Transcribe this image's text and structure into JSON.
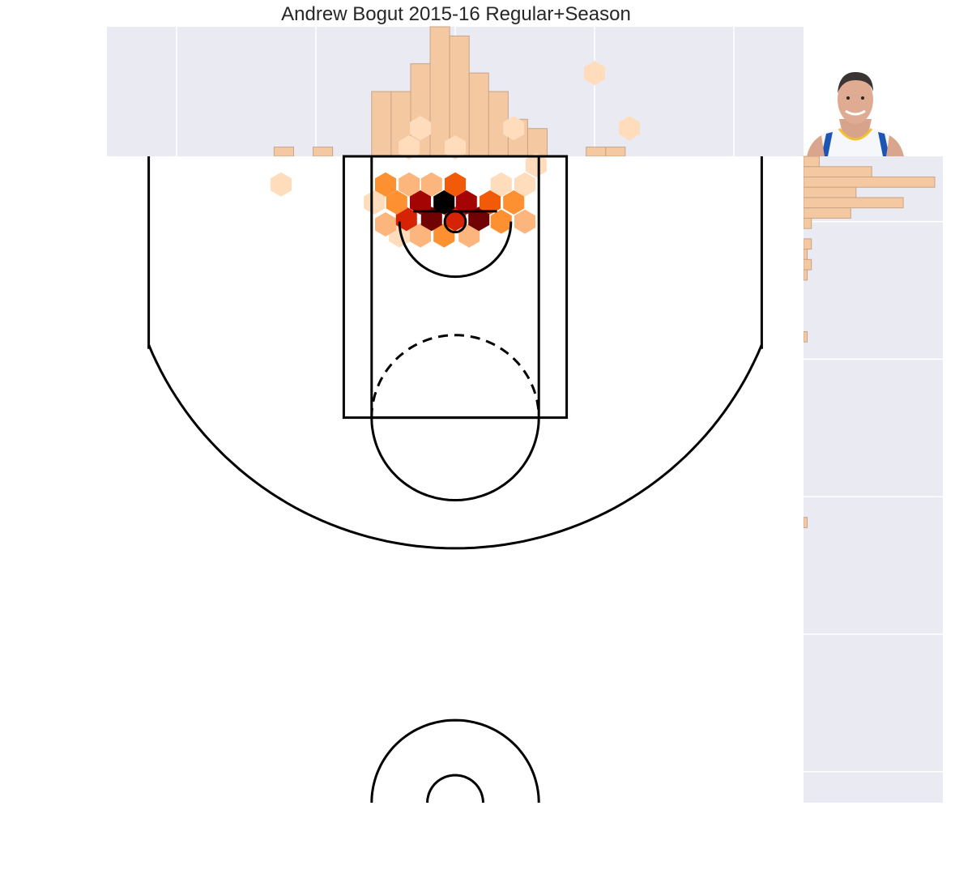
{
  "chart_data": {
    "type": "hexbin",
    "title": "Andrew Bogut 2015-16 Regular+Season",
    "xlim": [
      -250,
      250
    ],
    "ylim": [
      -47.5,
      422.5
    ],
    "court": {
      "three_point_line": true,
      "restricted_area": true,
      "paint": true,
      "center_circle": true
    },
    "colors": {
      "panel_bg": "#eaeaf2",
      "grid": "#ffffff",
      "hist_fill": "#f4c9a2",
      "hist_edge": "#c9a487",
      "court_line": "#000000",
      "hex_scale": [
        "#fedcbc",
        "#fdb57e",
        "#fd9031",
        "#f35a07",
        "#d62305",
        "#a40404",
        "#700202",
        "#000000"
      ]
    },
    "hexbins": [
      {
        "x": -40,
        "y": 10,
        "level": 1
      },
      {
        "x": -25,
        "y": 10,
        "level": 2
      },
      {
        "x": -8,
        "y": 10,
        "level": 3
      },
      {
        "x": 10,
        "y": 10,
        "level": 2
      },
      {
        "x": -50,
        "y": 2,
        "level": 2
      },
      {
        "x": -35,
        "y": -2,
        "level": 5
      },
      {
        "x": -17,
        "y": -2,
        "level": 7
      },
      {
        "x": 0,
        "y": -2,
        "level": 5
      },
      {
        "x": 17,
        "y": -2,
        "level": 7
      },
      {
        "x": 33,
        "y": 0,
        "level": 3
      },
      {
        "x": 50,
        "y": 0,
        "level": 2
      },
      {
        "x": -58,
        "y": -14,
        "level": 1
      },
      {
        "x": -42,
        "y": -14,
        "level": 3
      },
      {
        "x": -25,
        "y": -14,
        "level": 6
      },
      {
        "x": -8,
        "y": -14,
        "level": 8
      },
      {
        "x": 8,
        "y": -14,
        "level": 6
      },
      {
        "x": 25,
        "y": -14,
        "level": 4
      },
      {
        "x": 42,
        "y": -14,
        "level": 3
      },
      {
        "x": -50,
        "y": -27,
        "level": 3
      },
      {
        "x": -33,
        "y": -27,
        "level": 2
      },
      {
        "x": -17,
        "y": -27,
        "level": 2
      },
      {
        "x": 0,
        "y": -27,
        "level": 4
      },
      {
        "x": 33,
        "y": -27,
        "level": 1
      },
      {
        "x": 50,
        "y": -27,
        "level": 1
      },
      {
        "x": 58,
        "y": -41,
        "level": 1
      },
      {
        "x": -33,
        "y": -54,
        "level": 1
      },
      {
        "x": 0,
        "y": -54,
        "level": 1
      },
      {
        "x": -25,
        "y": -68,
        "level": 1
      },
      {
        "x": 42,
        "y": -68,
        "level": 1
      },
      {
        "x": 125,
        "y": -68,
        "level": 1
      },
      {
        "x": -125,
        "y": -27,
        "level": 1
      },
      {
        "x": 100,
        "y": -108,
        "level": 1
      },
      {
        "x": -92,
        "y": -203,
        "level": 1
      }
    ],
    "x_hist": {
      "bin_edges": [
        -130,
        -116,
        -102,
        -88,
        -74,
        -60,
        -46,
        -32,
        -18,
        -4,
        10,
        24,
        38,
        52,
        66,
        80,
        94,
        108,
        122
      ],
      "counts": [
        1,
        0,
        1,
        0,
        0,
        7,
        7,
        10,
        14,
        13,
        9,
        7,
        4,
        3,
        0,
        0,
        1,
        1
      ]
    },
    "y_hist": {
      "bin_edges": [
        -47.5,
        -40,
        -32.5,
        -25,
        -17.5,
        -10,
        -2.5,
        5,
        12.5,
        20,
        27.5,
        35,
        42.5,
        50,
        57.5,
        65,
        72.5,
        80,
        87.5,
        95,
        102.5,
        110,
        117.5,
        125,
        132.5,
        140,
        147.5,
        155,
        162.5,
        170,
        177.5,
        185,
        192.5,
        200,
        207.5,
        215,
        222.5,
        230,
        237.5,
        245,
        252.5,
        260,
        267.5,
        275,
        282.5,
        290,
        297.5,
        305,
        312.5,
        320,
        327.5,
        335,
        342.5,
        350,
        357.5,
        365,
        372.5,
        380,
        387.5,
        395,
        402.5,
        410,
        417.5,
        425
      ],
      "counts": [
        0,
        0,
        0,
        0,
        0,
        0,
        0,
        0,
        0,
        0,
        0,
        0,
        0,
        0,
        0,
        0,
        0,
        0,
        0,
        0,
        0,
        0,
        0,
        0,
        0,
        0,
        0,
        0,
        0,
        0,
        0,
        0,
        0,
        0,
        0,
        0,
        0,
        0,
        0,
        0,
        0,
        0,
        0,
        0,
        0,
        0,
        0,
        0,
        0,
        0,
        0,
        0,
        0,
        0,
        0,
        0,
        0,
        0,
        0,
        0,
        0,
        0,
        0
      ]
    },
    "y_hist_visible": {
      "bins": [
        {
          "y0": -47.5,
          "y1": -40.0,
          "count": 3
        },
        {
          "y0": -40.0,
          "y1": -32.5,
          "count": 13
        },
        {
          "y0": -32.5,
          "y1": -25.0,
          "count": 25
        },
        {
          "y0": -25.0,
          "y1": -17.5,
          "count": 10
        },
        {
          "y0": -17.5,
          "y1": -10.0,
          "count": 19
        },
        {
          "y0": -10.0,
          "y1": -2.5,
          "count": 9
        },
        {
          "y0": -2.5,
          "y1": 5.0,
          "count": 1.5
        },
        {
          "y0": 12.5,
          "y1": 20.0,
          "count": 1.5
        },
        {
          "y0": 20.0,
          "y1": 27.5,
          "count": 0.7
        },
        {
          "y0": 27.5,
          "y1": 35.0,
          "count": 1.5
        },
        {
          "y0": 35.0,
          "y1": 42.5,
          "count": 0.7
        },
        {
          "y0": 80.0,
          "y1": 87.5,
          "count": 0.7
        },
        {
          "y0": 215.0,
          "y1": 222.5,
          "count": 0.7
        }
      ],
      "max_count": 25
    },
    "player_photo": "andrew-bogut-headshot"
  }
}
